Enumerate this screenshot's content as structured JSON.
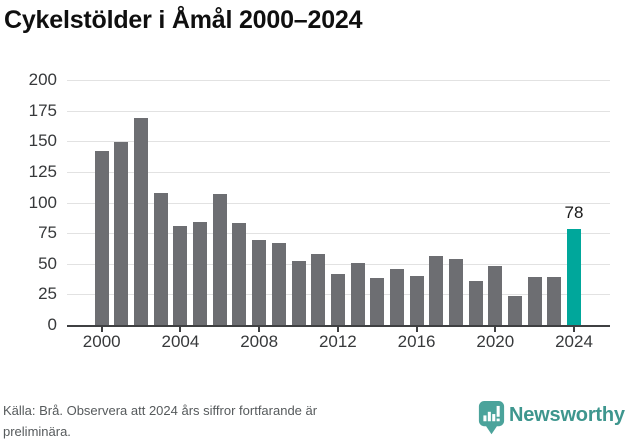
{
  "title": "Cykelstölder i Åmål 2000–2024",
  "chart_data": {
    "type": "bar",
    "title": "Cykelstölder i Åmål 2000–2024",
    "categories": [
      2000,
      2001,
      2002,
      2003,
      2004,
      2005,
      2006,
      2007,
      2008,
      2009,
      2010,
      2011,
      2012,
      2013,
      2014,
      2015,
      2016,
      2017,
      2018,
      2019,
      2020,
      2021,
      2022,
      2023,
      2024
    ],
    "values": [
      142,
      149,
      169,
      108,
      81,
      84,
      107,
      83,
      69,
      67,
      52,
      58,
      42,
      51,
      38,
      46,
      40,
      56,
      54,
      36,
      48,
      24,
      39,
      39,
      78
    ],
    "xlabel": "",
    "ylabel": "",
    "ylim": [
      0,
      200
    ],
    "yticks": [
      0,
      25,
      50,
      75,
      100,
      125,
      150,
      175,
      200
    ],
    "xticks": [
      2000,
      2004,
      2008,
      2012,
      2016,
      2020,
      2024
    ],
    "grid": "horizontal",
    "legend": "none",
    "bar_color": "#6d6e72",
    "highlight_color": "#00a79b",
    "highlight_category": 2024,
    "value_label": {
      "text": "78",
      "category": 2024
    }
  },
  "footer": {
    "source_text": "Källa: Brå. Observera att 2024 års siffror fortfarande är preliminära."
  },
  "branding": {
    "logo_text": "Newsworthy",
    "logo_color": "#3e968e",
    "logo_icon": "speech-bubble-bar-chart-icon",
    "icon_fill": "#4ba39b"
  }
}
